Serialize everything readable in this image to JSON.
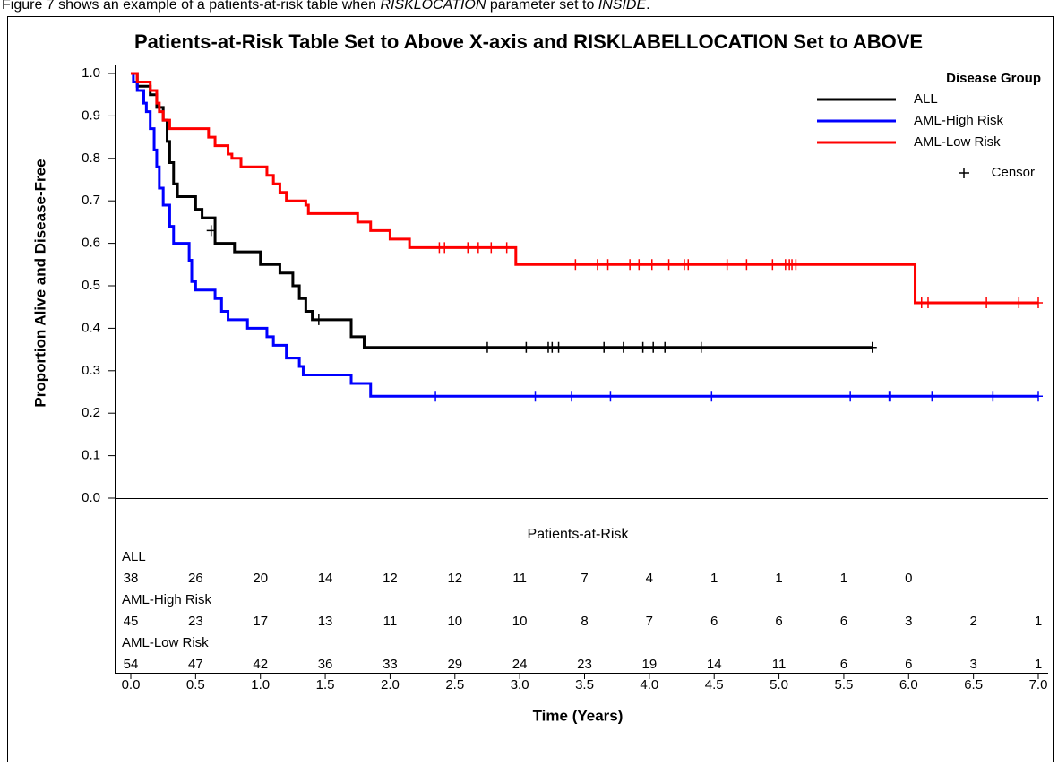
{
  "caption": [
    "Figure 7 shows an example of a patients-at-risk table when ",
    "RISKLOCATION",
    " parameter set to ",
    "INSIDE",
    "."
  ],
  "chart_data": {
    "type": "step",
    "title": "Patients-at-Risk Table Set to Above X-axis and RISKLABELLOCATION Set to ABOVE",
    "x_label": "Time (Years)",
    "y_label": "Proportion Alive and Disease-Free",
    "xlim": [
      0,
      7.0
    ],
    "ylim": [
      0,
      1.0
    ],
    "xticks": [
      {
        "value": 0,
        "label": "0.0"
      },
      0.5,
      {
        "value": 1,
        "label": "1.0"
      },
      1.5,
      {
        "value": 2,
        "label": "2.0"
      },
      2.5,
      {
        "value": 3,
        "label": "3.0"
      },
      3.5,
      {
        "value": 4,
        "label": "4.0"
      },
      4.5,
      {
        "value": 5,
        "label": "5.0"
      },
      5.5,
      {
        "value": 6,
        "label": "6.0"
      },
      6.5,
      {
        "value": 7,
        "label": "7.0"
      }
    ],
    "yticks": [
      {
        "value": 0,
        "label": "0.0"
      },
      0.1,
      0.2,
      0.3,
      0.4,
      0.5,
      0.6,
      0.7,
      0.8,
      0.9,
      {
        "value": 1,
        "label": "1.0"
      }
    ],
    "legend_title": "Disease Group",
    "censor_label": "Censor",
    "series": [
      {
        "name": "ALL",
        "color": "#000000",
        "x": [
          0,
          0.05,
          0.15,
          0.2,
          0.25,
          0.28,
          0.3,
          0.33,
          0.36,
          0.5,
          0.55,
          0.65,
          0.8,
          1.0,
          1.15,
          1.25,
          1.3,
          1.35,
          1.4,
          1.7,
          1.8,
          5.72
        ],
        "values": [
          1.0,
          0.97,
          0.95,
          0.92,
          0.89,
          0.84,
          0.79,
          0.74,
          0.71,
          0.68,
          0.66,
          0.6,
          0.58,
          0.55,
          0.53,
          0.5,
          0.47,
          0.44,
          0.42,
          0.38,
          0.355,
          0.355
        ],
        "censor_x": [
          0.62,
          1.45,
          2.75,
          3.05,
          3.22,
          3.25,
          3.3,
          3.65,
          3.8,
          3.95,
          4.03,
          4.12,
          4.4,
          5.72
        ],
        "censor_values": [
          0.63,
          0.42,
          0.355,
          0.355,
          0.355,
          0.355,
          0.355,
          0.355,
          0.355,
          0.355,
          0.355,
          0.355,
          0.355,
          0.355
        ],
        "at_risk": [
          38,
          26,
          20,
          14,
          12,
          12,
          11,
          7,
          4,
          1,
          1,
          1,
          0,
          null,
          null
        ]
      },
      {
        "name": "AML-High Risk",
        "color": "#0000ff",
        "x": [
          0,
          0.02,
          0.05,
          0.1,
          0.12,
          0.15,
          0.18,
          0.2,
          0.22,
          0.25,
          0.3,
          0.33,
          0.45,
          0.47,
          0.5,
          0.65,
          0.7,
          0.75,
          0.9,
          1.05,
          1.1,
          1.2,
          1.3,
          1.33,
          1.7,
          1.85,
          7.0
        ],
        "values": [
          1.0,
          0.98,
          0.96,
          0.93,
          0.91,
          0.87,
          0.82,
          0.78,
          0.73,
          0.69,
          0.64,
          0.6,
          0.56,
          0.51,
          0.49,
          0.47,
          0.44,
          0.42,
          0.4,
          0.38,
          0.36,
          0.33,
          0.31,
          0.29,
          0.27,
          0.24,
          0.24
        ],
        "censor_x": [
          2.35,
          3.12,
          3.4,
          3.7,
          4.48,
          5.55,
          5.85,
          5.86,
          6.18,
          6.65,
          7.0
        ],
        "censor_values": [
          0.24,
          0.24,
          0.24,
          0.24,
          0.24,
          0.24,
          0.24,
          0.24,
          0.24,
          0.24,
          0.24
        ],
        "at_risk": [
          45,
          23,
          17,
          13,
          11,
          10,
          10,
          8,
          7,
          6,
          6,
          6,
          3,
          2,
          1
        ]
      },
      {
        "name": "AML-Low Risk",
        "color": "#ff0000",
        "x": [
          0,
          0.05,
          0.15,
          0.2,
          0.22,
          0.25,
          0.3,
          0.6,
          0.65,
          0.75,
          0.78,
          0.85,
          1.05,
          1.1,
          1.15,
          1.2,
          1.35,
          1.37,
          1.75,
          1.85,
          2.0,
          2.15,
          2.97,
          6.05,
          7.0
        ],
        "values": [
          1.0,
          0.98,
          0.96,
          0.93,
          0.91,
          0.89,
          0.87,
          0.85,
          0.83,
          0.81,
          0.8,
          0.78,
          0.76,
          0.74,
          0.72,
          0.7,
          0.69,
          0.67,
          0.65,
          0.63,
          0.61,
          0.59,
          0.55,
          0.46,
          0.46
        ],
        "censor_x": [
          2.38,
          2.42,
          2.6,
          2.68,
          2.78,
          2.9,
          3.43,
          3.6,
          3.68,
          3.85,
          3.92,
          4.02,
          4.15,
          4.27,
          4.3,
          4.6,
          4.75,
          4.95,
          5.05,
          5.08,
          5.1,
          5.13,
          6.1,
          6.15,
          6.6,
          6.85,
          7.0
        ],
        "censor_values": [
          0.59,
          0.59,
          0.59,
          0.59,
          0.59,
          0.59,
          0.55,
          0.55,
          0.55,
          0.55,
          0.55,
          0.55,
          0.55,
          0.55,
          0.55,
          0.55,
          0.55,
          0.55,
          0.55,
          0.55,
          0.55,
          0.55,
          0.46,
          0.46,
          0.46,
          0.46,
          0.46
        ],
        "at_risk": [
          54,
          47,
          42,
          36,
          33,
          29,
          24,
          23,
          19,
          14,
          11,
          6,
          6,
          3,
          1
        ]
      }
    ],
    "risk_title": "Patients-at-Risk"
  }
}
